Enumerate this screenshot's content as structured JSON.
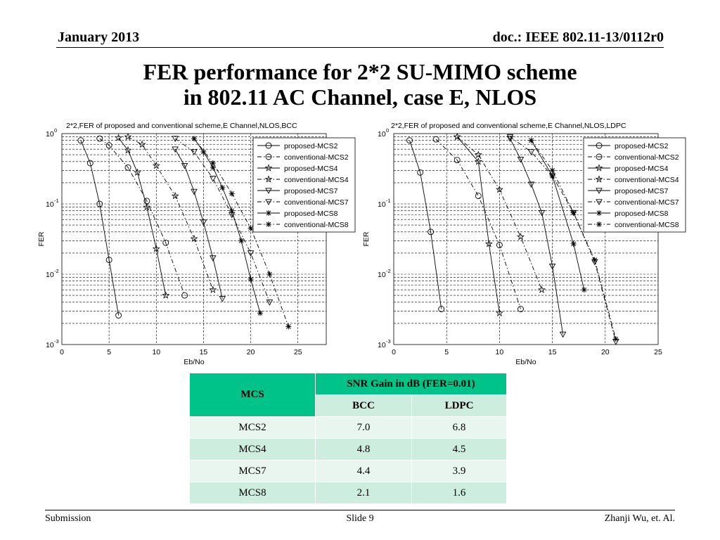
{
  "header": {
    "date": "January 2013",
    "doc": "doc.: IEEE 802.11-13/0112r0"
  },
  "title": {
    "line1": "FER performance for 2*2 SU-MIMO scheme",
    "line2": "in 802.11 AC Channel, case E, NLOS"
  },
  "footer": {
    "left": "Submission",
    "center": "Slide 9",
    "right": "Zhanji Wu,  et. Al."
  },
  "table": {
    "col_mcs": "MCS",
    "group_header": "SNR Gain in dB (FER=0.01)",
    "col_bcc": "BCC",
    "col_ldpc": "LDPC",
    "rows": [
      {
        "mcs": "MCS2",
        "bcc": "7.0",
        "ldpc": "6.8"
      },
      {
        "mcs": "MCS4",
        "bcc": "4.8",
        "ldpc": "4.5"
      },
      {
        "mcs": "MCS7",
        "bcc": "4.4",
        "ldpc": "3.9"
      },
      {
        "mcs": "MCS8",
        "bcc": "2.1",
        "ldpc": "1.6"
      }
    ]
  },
  "chart_data": [
    {
      "type": "line",
      "title": "2*2,FER of proposed and conventional scheme,E Channel,NLOS,BCC",
      "xlabel": "Eb/No",
      "ylabel": "FER",
      "xlim": [
        0,
        28
      ],
      "ylim": [
        0.001,
        1
      ],
      "yscale": "log",
      "xticks": [
        0,
        5,
        10,
        15,
        20,
        25
      ],
      "yticks": [
        {
          "value": 1,
          "exp": "0"
        },
        {
          "value": 0.1,
          "exp": "-1"
        },
        {
          "value": 0.01,
          "exp": "-2"
        },
        {
          "value": 0.001,
          "exp": "-3"
        }
      ],
      "grid": true,
      "legend_position": "top-right",
      "series": [
        {
          "name": "proposed-MCS2",
          "marker": "circle",
          "dash": false,
          "x": [
            2,
            3,
            4,
            5,
            6
          ],
          "y": [
            0.8,
            0.38,
            0.1,
            0.016,
            0.0026
          ]
        },
        {
          "name": "conventional-MCS2",
          "marker": "circle",
          "dash": true,
          "x": [
            4,
            5,
            7,
            9,
            11,
            13
          ],
          "y": [
            0.85,
            0.68,
            0.33,
            0.11,
            0.028,
            0.005
          ]
        },
        {
          "name": "proposed-MCS4",
          "marker": "star",
          "dash": false,
          "x": [
            6,
            7,
            8,
            9,
            10,
            11
          ],
          "y": [
            0.87,
            0.58,
            0.28,
            0.09,
            0.023,
            0.005
          ]
        },
        {
          "name": "conventional-MCS4",
          "marker": "star",
          "dash": true,
          "x": [
            7,
            8.5,
            10,
            12,
            14,
            16
          ],
          "y": [
            0.9,
            0.7,
            0.35,
            0.13,
            0.032,
            0.006
          ]
        },
        {
          "name": "proposed-MCS7",
          "marker": "triangle",
          "dash": false,
          "x": [
            12,
            13,
            14,
            15,
            16,
            17
          ],
          "y": [
            0.6,
            0.35,
            0.15,
            0.055,
            0.017,
            0.0045
          ]
        },
        {
          "name": "conventional-MCS7",
          "marker": "triangle",
          "dash": true,
          "x": [
            12,
            14,
            16,
            18,
            20,
            22
          ],
          "y": [
            0.85,
            0.55,
            0.23,
            0.07,
            0.02,
            0.004
          ]
        },
        {
          "name": "proposed-MCS8",
          "marker": "asterisk",
          "dash": false,
          "x": [
            14,
            15,
            16,
            17,
            18,
            19,
            20,
            21
          ],
          "y": [
            0.85,
            0.55,
            0.33,
            0.17,
            0.08,
            0.03,
            0.0085,
            0.0028
          ]
        },
        {
          "name": "conventional-MCS8",
          "marker": "asterisk",
          "dash": true,
          "x": [
            14,
            16,
            18,
            20,
            22,
            24
          ],
          "y": [
            0.85,
            0.38,
            0.14,
            0.045,
            0.01,
            0.0018
          ]
        }
      ]
    },
    {
      "type": "line",
      "title": "2*2,FER of proposed and conventional scheme,E Channel,NLOS,LDPC",
      "xlabel": "Eb/No",
      "ylabel": "FER",
      "xlim": [
        0,
        25
      ],
      "ylim": [
        0.001,
        1
      ],
      "yscale": "log",
      "xticks": [
        0,
        5,
        10,
        15,
        20,
        25
      ],
      "yticks": [
        {
          "value": 1,
          "exp": "0"
        },
        {
          "value": 0.1,
          "exp": "-1"
        },
        {
          "value": 0.01,
          "exp": "-2"
        },
        {
          "value": 0.001,
          "exp": "-3"
        }
      ],
      "grid": true,
      "legend_position": "top-right",
      "series": [
        {
          "name": "proposed-MCS2",
          "marker": "circle",
          "dash": false,
          "x": [
            1.5,
            2.5,
            3.5,
            4.5
          ],
          "y": [
            0.8,
            0.28,
            0.04,
            0.0032
          ]
        },
        {
          "name": "conventional-MCS2",
          "marker": "circle",
          "dash": true,
          "x": [
            4,
            6,
            8,
            10,
            12
          ],
          "y": [
            0.83,
            0.42,
            0.13,
            0.026,
            0.0032
          ]
        },
        {
          "name": "proposed-MCS4",
          "marker": "star",
          "dash": false,
          "x": [
            6,
            8,
            9,
            10
          ],
          "y": [
            0.9,
            0.4,
            0.027,
            0.0028
          ]
        },
        {
          "name": "conventional-MCS4",
          "marker": "star",
          "dash": true,
          "x": [
            6,
            8,
            10,
            12,
            14
          ],
          "y": [
            0.9,
            0.5,
            0.16,
            0.034,
            0.006
          ]
        },
        {
          "name": "proposed-MCS7",
          "marker": "triangle",
          "dash": false,
          "x": [
            11,
            12,
            13,
            14,
            15,
            16
          ],
          "y": [
            0.85,
            0.43,
            0.19,
            0.075,
            0.013,
            0.0014
          ]
        },
        {
          "name": "conventional-MCS7",
          "marker": "triangle",
          "dash": true,
          "x": [
            11,
            13,
            15,
            17,
            19,
            21
          ],
          "y": [
            0.9,
            0.55,
            0.25,
            0.075,
            0.015,
            0.0011
          ]
        },
        {
          "name": "proposed-MCS8",
          "marker": "asterisk",
          "dash": false,
          "x": [
            13,
            15,
            17,
            18
          ],
          "y": [
            0.8,
            0.25,
            0.027,
            0.006
          ]
        },
        {
          "name": "conventional-MCS8",
          "marker": "asterisk",
          "dash": true,
          "x": [
            13,
            15,
            17,
            19,
            21
          ],
          "y": [
            0.8,
            0.3,
            0.075,
            0.016,
            0.0012
          ]
        }
      ]
    }
  ]
}
